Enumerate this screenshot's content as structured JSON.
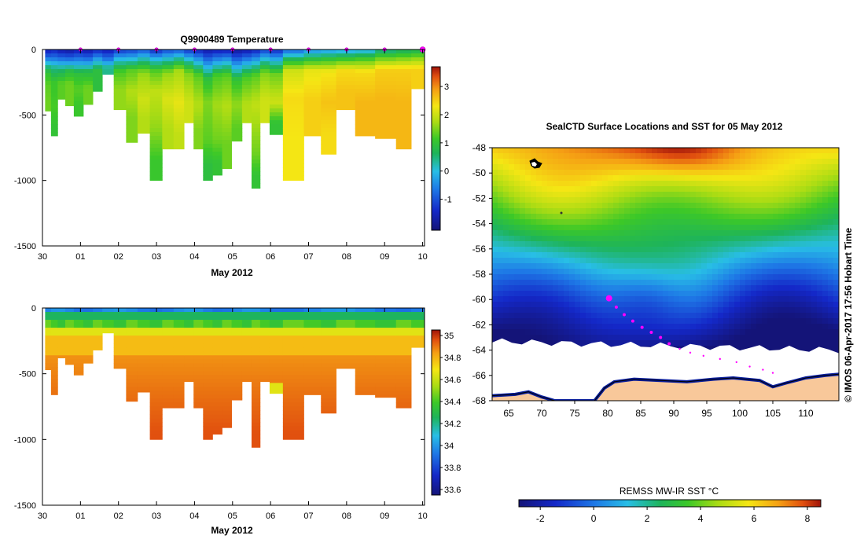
{
  "page": {
    "background": "#ffffff"
  },
  "chart_data": [
    {
      "id": "temperature",
      "type": "heatmap",
      "title": "Q9900489  Temperature",
      "xlabel": "May 2012",
      "x_tick_labels": [
        "30",
        "01",
        "02",
        "03",
        "04",
        "05",
        "06",
        "07",
        "08",
        "09",
        "10"
      ],
      "y_tick_labels": [
        "0",
        "-500",
        "-1000",
        "-1500"
      ],
      "y_ticks": [
        0,
        -500,
        -1000,
        -1500
      ],
      "ylim": [
        -1500,
        0
      ],
      "colorbar": {
        "tick_labels": [
          "3",
          "2",
          "1",
          "0",
          "-1"
        ],
        "ticks": [
          3,
          2,
          1,
          0,
          -1
        ],
        "range": [
          -2.1,
          3.7
        ]
      },
      "profiles": [
        {
          "day": 0.15,
          "depth": 470,
          "layers": [
            [
              0,
              -1.6
            ],
            [
              60,
              -0.8
            ],
            [
              120,
              0.3
            ],
            [
              180,
              1.0
            ],
            [
              270,
              1.3
            ],
            [
              400,
              1.4
            ]
          ]
        },
        {
          "day": 0.3,
          "depth": 660,
          "layers": [
            [
              0,
              -1.5
            ],
            [
              80,
              -0.5
            ],
            [
              140,
              0.4
            ],
            [
              250,
              1.1
            ],
            [
              450,
              1.2
            ],
            [
              580,
              1.0
            ]
          ]
        },
        {
          "day": 0.5,
          "depth": 380,
          "layers": [
            [
              0,
              -1.7
            ],
            [
              80,
              -0.6
            ],
            [
              150,
              0.5
            ],
            [
              260,
              1.3
            ]
          ]
        },
        {
          "day": 0.7,
          "depth": 430,
          "layers": [
            [
              0,
              -1.8
            ],
            [
              90,
              -0.5
            ],
            [
              160,
              0.8
            ],
            [
              260,
              1.4
            ]
          ]
        },
        {
          "day": 0.95,
          "depth": 510,
          "layers": [
            [
              0,
              -1.6
            ],
            [
              100,
              -0.3
            ],
            [
              180,
              0.9
            ],
            [
              300,
              1.3
            ],
            [
              430,
              1.1
            ]
          ]
        },
        {
          "day": 1.2,
          "depth": 420,
          "layers": [
            [
              0,
              -1.7
            ],
            [
              90,
              -0.5
            ],
            [
              170,
              0.8
            ],
            [
              290,
              1.4
            ]
          ]
        },
        {
          "day": 1.45,
          "depth": 320,
          "layers": [
            [
              0,
              -1.5
            ],
            [
              80,
              -0.2
            ],
            [
              160,
              0.9
            ]
          ]
        },
        {
          "day": 1.7,
          "depth": 190,
          "layers": [
            [
              0,
              -1.6
            ],
            [
              80,
              -0.6
            ],
            [
              140,
              0.4
            ]
          ]
        },
        {
          "day": 2.05,
          "depth": 460,
          "layers": [
            [
              0,
              -1.3
            ],
            [
              90,
              0.2
            ],
            [
              170,
              1.2
            ],
            [
              300,
              1.6
            ]
          ]
        },
        {
          "day": 2.35,
          "depth": 710,
          "layers": [
            [
              0,
              -1.2
            ],
            [
              80,
              0.1
            ],
            [
              160,
              1.3
            ],
            [
              320,
              1.8
            ],
            [
              520,
              1.5
            ]
          ]
        },
        {
          "day": 2.65,
          "depth": 640,
          "layers": [
            [
              0,
              -1.0
            ],
            [
              90,
              0.5
            ],
            [
              180,
              1.6
            ],
            [
              380,
              2.0
            ],
            [
              530,
              1.8
            ]
          ]
        },
        {
          "day": 3.0,
          "depth": 1000,
          "layers": [
            [
              0,
              -1.4
            ],
            [
              90,
              0.2
            ],
            [
              170,
              1.3
            ],
            [
              320,
              1.9
            ],
            [
              600,
              1.6
            ],
            [
              850,
              1.1
            ]
          ]
        },
        {
          "day": 3.3,
          "depth": 760,
          "layers": [
            [
              0,
              -1.1
            ],
            [
              90,
              0.4
            ],
            [
              180,
              1.6
            ],
            [
              380,
              2.1
            ],
            [
              600,
              1.8
            ]
          ]
        },
        {
          "day": 3.6,
          "depth": 760,
          "layers": [
            [
              0,
              -1.0
            ],
            [
              80,
              0.5
            ],
            [
              160,
              1.7
            ],
            [
              400,
              2.2
            ],
            [
              650,
              1.9
            ]
          ]
        },
        {
          "day": 3.85,
          "depth": 560,
          "layers": [
            [
              0,
              -1.3
            ],
            [
              90,
              0.3
            ],
            [
              180,
              1.5
            ],
            [
              400,
              2.0
            ]
          ]
        },
        {
          "day": 4.1,
          "depth": 760,
          "layers": [
            [
              0,
              -1.5
            ],
            [
              100,
              0.0
            ],
            [
              200,
              1.3
            ],
            [
              420,
              1.8
            ],
            [
              620,
              1.5
            ]
          ]
        },
        {
          "day": 4.35,
          "depth": 1000,
          "layers": [
            [
              0,
              -1.7
            ],
            [
              110,
              -0.4
            ],
            [
              220,
              0.9
            ],
            [
              400,
              1.5
            ],
            [
              700,
              1.3
            ],
            [
              880,
              0.9
            ]
          ]
        },
        {
          "day": 4.6,
          "depth": 960,
          "layers": [
            [
              0,
              -1.6
            ],
            [
              100,
              -0.2
            ],
            [
              200,
              1.2
            ],
            [
              420,
              1.7
            ],
            [
              700,
              1.4
            ],
            [
              860,
              1.0
            ]
          ]
        },
        {
          "day": 4.85,
          "depth": 910,
          "layers": [
            [
              0,
              -1.6
            ],
            [
              100,
              0.0
            ],
            [
              200,
              1.3
            ],
            [
              430,
              1.8
            ],
            [
              720,
              1.4
            ]
          ]
        },
        {
          "day": 5.1,
          "depth": 700,
          "layers": [
            [
              0,
              -1.8
            ],
            [
              120,
              -0.3
            ],
            [
              230,
              1.0
            ],
            [
              420,
              1.6
            ],
            [
              600,
              1.3
            ]
          ]
        },
        {
          "day": 5.4,
          "depth": 560,
          "layers": [
            [
              0,
              -1.7
            ],
            [
              110,
              -0.1
            ],
            [
              210,
              1.2
            ],
            [
              420,
              1.8
            ]
          ]
        },
        {
          "day": 5.6,
          "depth": 1060,
          "layers": [
            [
              0,
              -1.5
            ],
            [
              100,
              0.0
            ],
            [
              200,
              1.3
            ],
            [
              420,
              1.9
            ],
            [
              800,
              1.4
            ],
            [
              960,
              1.0
            ]
          ]
        },
        {
          "day": 5.85,
          "depth": 560,
          "layers": [
            [
              0,
              -1.2
            ],
            [
              90,
              0.3
            ],
            [
              180,
              1.5
            ],
            [
              380,
              2.0
            ]
          ]
        },
        {
          "day": 6.1,
          "depth": 650,
          "layers": [
            [
              0,
              -1.4
            ],
            [
              100,
              0.2
            ],
            [
              190,
              1.4
            ],
            [
              400,
              2.0
            ],
            [
              560,
              1.0
            ]
          ]
        },
        {
          "day": 6.55,
          "depth": 1000,
          "layers": [
            [
              0,
              -0.9
            ],
            [
              80,
              0.8
            ],
            [
              160,
              2.0
            ],
            [
              360,
              2.4
            ],
            [
              700,
              2.3
            ]
          ]
        },
        {
          "day": 7.2,
          "depth": 660,
          "layers": [
            [
              0,
              -0.5
            ],
            [
              80,
              1.0
            ],
            [
              160,
              2.2
            ],
            [
              380,
              2.5
            ]
          ]
        },
        {
          "day": 7.45,
          "depth": 800,
          "layers": [
            [
              0,
              -0.4
            ],
            [
              80,
              1.1
            ],
            [
              170,
              2.3
            ],
            [
              400,
              2.6
            ],
            [
              650,
              2.4
            ]
          ]
        },
        {
          "day": 8.0,
          "depth": 460,
          "layers": [
            [
              0,
              -0.3
            ],
            [
              80,
              1.2
            ],
            [
              160,
              2.4
            ],
            [
              320,
              2.6
            ]
          ]
        },
        {
          "day": 8.45,
          "depth": 660,
          "layers": [
            [
              0,
              -0.2
            ],
            [
              80,
              1.3
            ],
            [
              170,
              2.4
            ],
            [
              400,
              2.7
            ]
          ]
        },
        {
          "day": 9.05,
          "depth": 680,
          "layers": [
            [
              0,
              0.3
            ],
            [
              70,
              1.4
            ],
            [
              150,
              2.5
            ],
            [
              380,
              2.7
            ]
          ]
        },
        {
          "day": 9.55,
          "depth": 760,
          "layers": [
            [
              0,
              0.5
            ],
            [
              70,
              1.5
            ],
            [
              150,
              2.5
            ],
            [
              400,
              2.7
            ]
          ]
        },
        {
          "day": 9.85,
          "depth": 300,
          "layers": [
            [
              0,
              0.6
            ],
            [
              70,
              1.6
            ],
            [
              150,
              2.5
            ]
          ]
        }
      ],
      "surface_markers_days": [
        1.0,
        2.0,
        3.0,
        4.0,
        5.0,
        6.0,
        7.0,
        8.0,
        9.0,
        10.0
      ]
    },
    {
      "id": "salinity",
      "type": "heatmap",
      "title": "",
      "xlabel": "May 2012",
      "x_tick_labels": [
        "30",
        "01",
        "02",
        "03",
        "04",
        "05",
        "06",
        "07",
        "08",
        "09",
        "10"
      ],
      "y_tick_labels": [
        "0",
        "-500",
        "-1000",
        "-1500"
      ],
      "y_ticks": [
        0,
        -500,
        -1000,
        -1500
      ],
      "ylim": [
        -1500,
        0
      ],
      "colorbar": {
        "tick_labels": [
          "35",
          "34.8",
          "34.6",
          "34.4",
          "34.2",
          "34",
          "33.8",
          "33.6"
        ],
        "ticks": [
          35,
          34.8,
          34.6,
          34.4,
          34.2,
          34,
          33.8,
          33.6
        ],
        "range": [
          33.55,
          35.05
        ]
      }
    },
    {
      "id": "sst-map",
      "type": "heatmap",
      "title": "SealCTD Surface Locations and SST for 05 May 2012",
      "x_tick_labels": [
        "65",
        "70",
        "75",
        "80",
        "85",
        "90",
        "95",
        "100",
        "105",
        "110"
      ],
      "x_ticks": [
        65,
        70,
        75,
        80,
        85,
        90,
        95,
        100,
        105,
        110
      ],
      "xlim": [
        62.5,
        115
      ],
      "y_tick_labels": [
        "-48",
        "-50",
        "-52",
        "-54",
        "-56",
        "-58",
        "-60",
        "-62",
        "-64",
        "-66",
        "-68"
      ],
      "y_ticks": [
        -48,
        -50,
        -52,
        -54,
        -56,
        -58,
        -60,
        -62,
        -64,
        -66,
        -68
      ],
      "ylim": [
        -68,
        -48
      ],
      "colorbar": {
        "label": "REMSS MW-IR SST °C",
        "tick_labels": [
          "-2",
          "0",
          "2",
          "4",
          "6",
          "8"
        ],
        "ticks": [
          -2,
          0,
          2,
          4,
          6,
          8
        ],
        "range": [
          -2.8,
          8.5
        ]
      },
      "track": [
        [
          80.2,
          -59.9
        ],
        [
          81.3,
          -60.6
        ],
        [
          82.5,
          -61.2
        ],
        [
          83.8,
          -61.7
        ],
        [
          85.2,
          -62.2
        ],
        [
          86.6,
          -62.6
        ],
        [
          88.0,
          -63.0
        ],
        [
          89.3,
          -63.5
        ],
        [
          90.9,
          -63.9
        ],
        [
          92.5,
          -64.2
        ],
        [
          94.5,
          -64.45
        ],
        [
          97.0,
          -64.7
        ],
        [
          99.5,
          -64.95
        ],
        [
          101.5,
          -65.3
        ],
        [
          103.5,
          -65.55
        ],
        [
          105.0,
          -65.8
        ]
      ],
      "track_highlight": [
        80.2,
        -59.9
      ],
      "ice_edge_lat_west": -63.3,
      "ice_edge_lat_east": -64.0,
      "coast": [
        [
          62.5,
          -67.6
        ],
        [
          66,
          -67.5
        ],
        [
          68,
          -67.3
        ],
        [
          70,
          -67.7
        ],
        [
          72,
          -68
        ],
        [
          78,
          -68
        ],
        [
          79.5,
          -67.0
        ],
        [
          81,
          -66.5
        ],
        [
          84,
          -66.3
        ],
        [
          88,
          -66.4
        ],
        [
          92,
          -66.5
        ],
        [
          96,
          -66.3
        ],
        [
          99,
          -66.2
        ],
        [
          103,
          -66.4
        ],
        [
          105,
          -66.9
        ],
        [
          107,
          -66.6
        ],
        [
          110,
          -66.2
        ],
        [
          113,
          -66.0
        ],
        [
          115,
          -65.9
        ]
      ]
    }
  ],
  "side_label": "© IMOS 06-Apr-2017 17:56 Hobart Time"
}
